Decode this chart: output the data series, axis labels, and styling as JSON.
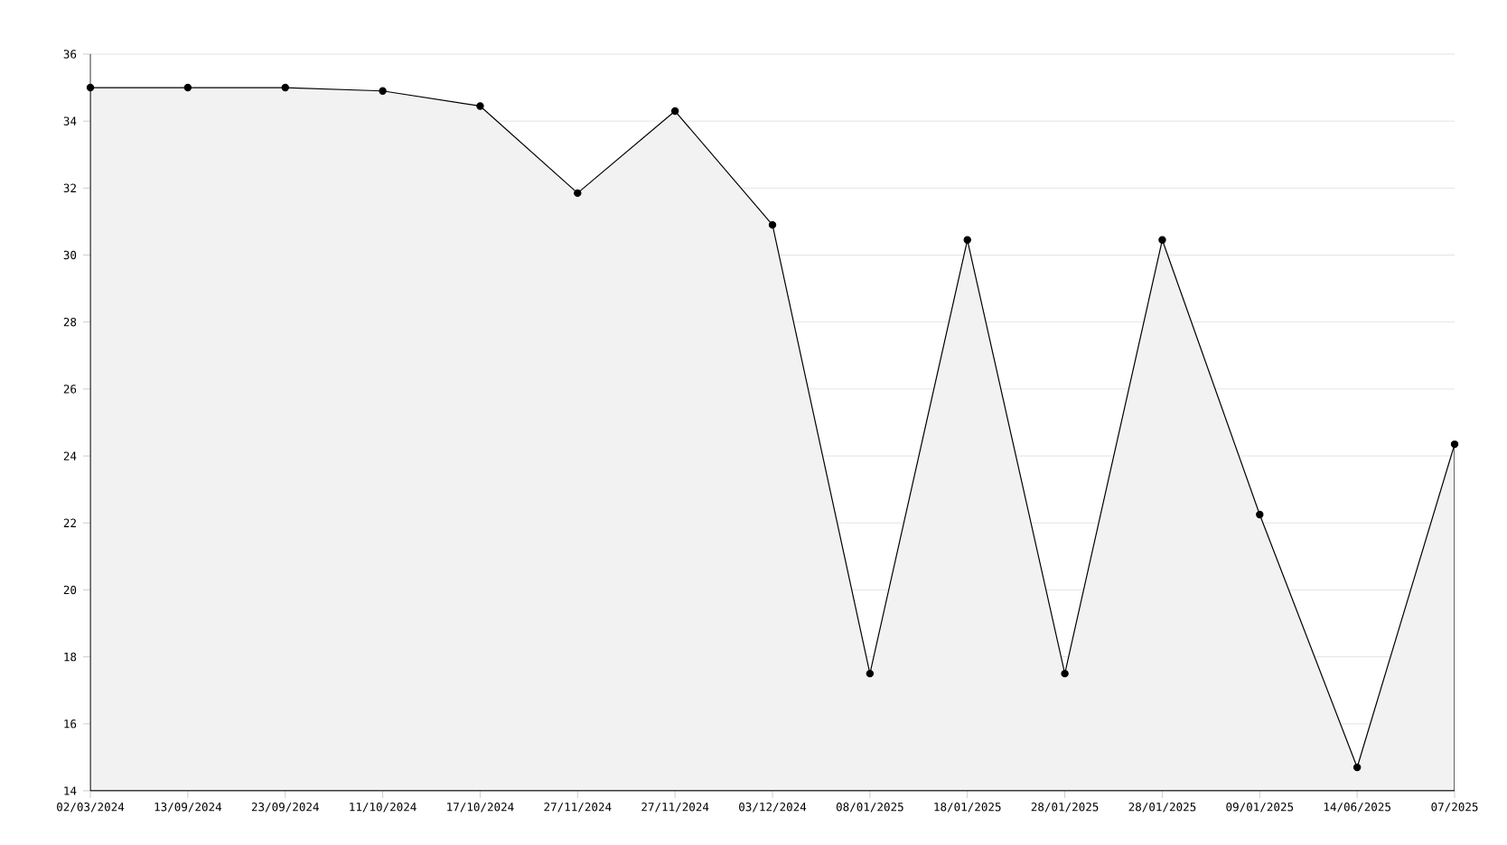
{
  "chart_data": {
    "type": "area",
    "categories": [
      "02/03/2024",
      "13/09/2024",
      "23/09/2024",
      "11/10/2024",
      "17/10/2024",
      "27/11/2024",
      "27/11/2024",
      "03/12/2024",
      "08/01/2025",
      "18/01/2025",
      "28/01/2025",
      "28/01/2025",
      "09/01/2025",
      "14/06/2025",
      "07/2025"
    ],
    "series": [
      {
        "color": "#000000",
        "values": [
          35,
          35,
          35,
          34.9,
          34.45,
          31.85,
          34.3,
          30.9,
          17.5,
          30.45,
          17.5,
          30.45,
          22.25,
          14.7,
          24.35
        ]
      }
    ],
    "ylim": [
      14,
      36
    ],
    "yticks": [
      14,
      16,
      18,
      20,
      22,
      24,
      26,
      28,
      30,
      32,
      34,
      36
    ],
    "grid": "y",
    "marker": "circle"
  }
}
